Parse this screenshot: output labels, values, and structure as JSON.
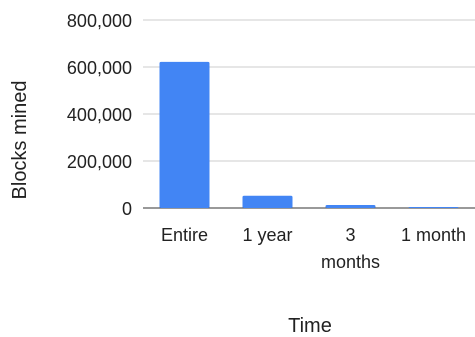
{
  "chart_data": {
    "type": "bar",
    "categories": [
      "Entire",
      "1 year",
      "3 months",
      "1 month"
    ],
    "category_lines": [
      [
        "Entire"
      ],
      [
        "1 year"
      ],
      [
        "3",
        "months"
      ],
      [
        "1 month"
      ]
    ],
    "values": [
      622000,
      52000,
      13000,
      4000
    ],
    "xlabel": "Time",
    "ylabel": "Blocks mined",
    "ylim": [
      0,
      800000
    ],
    "yticks": [
      0,
      200000,
      400000,
      600000,
      800000
    ],
    "ytick_labels": [
      "0",
      "200,000",
      "400,000",
      "600,000",
      "800,000"
    ],
    "grid": true,
    "legend": "none",
    "bar_color": "#4285f4"
  }
}
